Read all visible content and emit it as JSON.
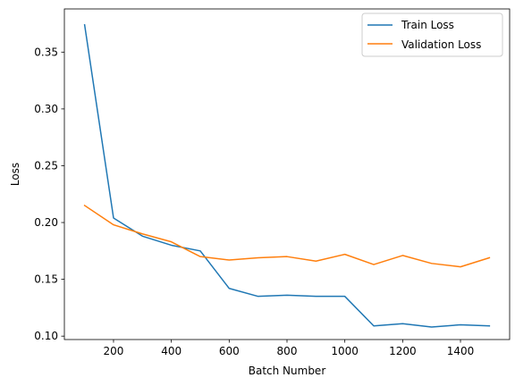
{
  "chart_data": {
    "type": "line",
    "title": "",
    "xlabel": "Batch Number",
    "ylabel": "Loss",
    "xlim": [
      30,
      1570
    ],
    "ylim": [
      0.097,
      0.388
    ],
    "xticks": [
      200,
      400,
      600,
      800,
      1000,
      1200,
      1400
    ],
    "xtick_labels": [
      "200",
      "400",
      "600",
      "800",
      "1000",
      "1200",
      "1400"
    ],
    "yticks": [
      0.1,
      0.15,
      0.2,
      0.25,
      0.3,
      0.35
    ],
    "ytick_labels": [
      "0.10",
      "0.15",
      "0.20",
      "0.25",
      "0.30",
      "0.35"
    ],
    "grid": false,
    "legend_position": "top-right",
    "x": [
      100,
      200,
      300,
      400,
      500,
      600,
      700,
      800,
      900,
      1000,
      1100,
      1200,
      1300,
      1400,
      1500
    ],
    "series": [
      {
        "name": "Train Loss",
        "color": "#1f77b4",
        "values": [
          0.374,
          0.204,
          0.188,
          0.18,
          0.175,
          0.142,
          0.135,
          0.136,
          0.135,
          0.135,
          0.109,
          0.111,
          0.108,
          0.11,
          0.109
        ]
      },
      {
        "name": "Validation Loss",
        "color": "#ff7f0e",
        "values": [
          0.215,
          0.198,
          0.19,
          0.183,
          0.17,
          0.167,
          0.169,
          0.17,
          0.166,
          0.172,
          0.163,
          0.171,
          0.164,
          0.161,
          0.169
        ]
      }
    ]
  }
}
